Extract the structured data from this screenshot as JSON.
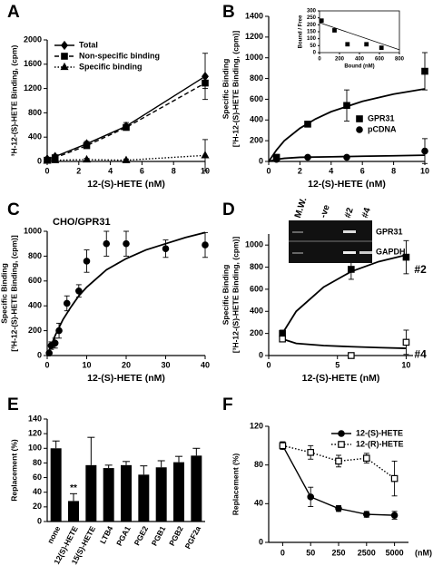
{
  "chart_data": [
    {
      "type": "line",
      "panel": "A",
      "xlabel": "12-(S)-HETE (nM)",
      "ylabel": [
        "³H-12-(S)-HETE Binding, (cpm)"
      ],
      "xlim": [
        0,
        10
      ],
      "xticks": [
        0,
        2,
        4,
        6,
        8,
        10
      ],
      "ylim": [
        0,
        2000
      ],
      "yticks": [
        0,
        400,
        800,
        1200,
        1600,
        2000
      ],
      "legend": "upper left",
      "x": [
        0,
        0.5,
        2.5,
        5,
        10
      ],
      "series": [
        {
          "name": "Total",
          "color": "#000000",
          "marker": "diamond",
          "filled": true,
          "dash": "solid",
          "values": [
            40,
            80,
            290,
            580,
            1400
          ],
          "errors": [
            10,
            20,
            40,
            60,
            380
          ]
        },
        {
          "name": "Non-specific binding",
          "color": "#000000",
          "marker": "square",
          "filled": true,
          "dash": "dashed",
          "values": [
            20,
            60,
            260,
            560,
            1290
          ],
          "errors": [
            5,
            10,
            30,
            40,
            90
          ]
        },
        {
          "name": "Specific binding",
          "color": "#000000",
          "marker": "triangle",
          "filled": true,
          "dash": "dotted",
          "values": [
            10,
            20,
            30,
            20,
            100
          ],
          "errors": [
            5,
            10,
            20,
            20,
            260
          ]
        }
      ]
    },
    {
      "type": "scatter",
      "panel": "B",
      "xlabel": "12-(S)-HETE (nM)",
      "ylabel": [
        "Specific Binding",
        "[³H-12-(S)-HETE Binding, (cpm)]"
      ],
      "xlim": [
        0,
        10
      ],
      "xticks": [
        0,
        2,
        4,
        6,
        8,
        10
      ],
      "ylim": [
        0,
        1400
      ],
      "yticks": [
        0,
        200,
        400,
        600,
        800,
        1000,
        1200,
        1400
      ],
      "legend": "lower right",
      "x": [
        0.5,
        2.5,
        5,
        10
      ],
      "series": [
        {
          "name": "GPR31",
          "color": "#000000",
          "marker": "square",
          "filled": true,
          "values": [
            40,
            360,
            540,
            870
          ],
          "errors": [
            10,
            20,
            150,
            180
          ]
        },
        {
          "name": "pCDNA",
          "color": "#000000",
          "marker": "circle",
          "filled": true,
          "values": [
            20,
            40,
            40,
            100
          ],
          "errors": [
            5,
            10,
            10,
            120
          ]
        }
      ],
      "curves": [
        {
          "x": [
            0,
            0.5,
            1,
            2,
            3,
            4,
            6,
            8,
            10
          ],
          "values": [
            0,
            110,
            200,
            320,
            410,
            480,
            580,
            650,
            700
          ]
        },
        {
          "x": [
            0,
            0.5,
            1,
            2,
            4,
            6,
            8,
            10
          ],
          "values": [
            0,
            20,
            30,
            40,
            45,
            50,
            55,
            60
          ]
        }
      ],
      "inset": {
        "type": "scatter",
        "xlabel": "Bound (nM)",
        "ylabel": [
          "Bound / Free"
        ],
        "xlim": [
          0,
          800
        ],
        "xticks": [
          0,
          200,
          400,
          600,
          800
        ],
        "ylim": [
          0,
          300
        ],
        "yticks": [
          0,
          50,
          100,
          150,
          200,
          250,
          300
        ],
        "x": [
          20,
          150,
          280,
          470,
          620
        ],
        "series": [
          {
            "color": "#000000",
            "marker": "square",
            "filled": true,
            "values": [
              230,
              160,
              60,
              60,
              35
            ]
          }
        ],
        "curves": [
          {
            "x": [
              0,
              800
            ],
            "values": [
              215,
              20
            ]
          }
        ]
      }
    },
    {
      "type": "scatter",
      "panel": "C",
      "title": "CHO/GPR31",
      "xlabel": "12-(S)-HETE (nM)",
      "ylabel": [
        "Specific Binding",
        "[³H-12-(S)-HETE Binding, (cpm)]"
      ],
      "xlim": [
        0,
        40
      ],
      "xticks": [
        0,
        10,
        20,
        30,
        40
      ],
      "ylim": [
        0,
        1000
      ],
      "yticks": [
        0,
        200,
        400,
        600,
        800,
        1000
      ],
      "x": [
        0.5,
        1,
        2,
        3,
        5,
        8,
        10,
        15,
        20,
        30,
        40
      ],
      "series": [
        {
          "color": "#000000",
          "marker": "circle",
          "filled": true,
          "values": [
            20,
            80,
            100,
            200,
            420,
            520,
            760,
            900,
            900,
            860,
            890
          ],
          "errors": [
            10,
            30,
            40,
            60,
            60,
            50,
            90,
            100,
            100,
            70,
            100
          ]
        }
      ],
      "curves": [
        {
          "x": [
            0,
            2,
            4,
            6,
            8,
            10,
            15,
            20,
            25,
            30,
            35,
            40
          ],
          "values": [
            0,
            160,
            290,
            390,
            480,
            550,
            690,
            780,
            850,
            900,
            950,
            990
          ]
        }
      ]
    },
    {
      "type": "scatter",
      "panel": "D",
      "xlabel": "12-(S)-HETE (nM)",
      "ylabel": [
        "Specific Binding",
        "[³H-12-(S)-HETE Binding, (cpm)]"
      ],
      "xlim": [
        0,
        10.5
      ],
      "xticks": [
        0,
        5,
        10
      ],
      "ylim": [
        0,
        1100
      ],
      "yticks": [
        0,
        200,
        400,
        600,
        800,
        1000
      ],
      "legend": "curve-end",
      "x": [
        1,
        6,
        10
      ],
      "series": [
        {
          "name": "#2",
          "color": "#000000",
          "marker": "square",
          "filled": true,
          "values": [
            200,
            780,
            890
          ],
          "errors": [
            30,
            90,
            150
          ]
        },
        {
          "name": "#4",
          "color": "#000000",
          "marker": "square",
          "filled": false,
          "values": [
            150,
            0,
            120
          ],
          "errors": [
            20,
            20,
            110
          ]
        }
      ],
      "curves": [
        {
          "x": [
            1,
            2,
            4,
            6,
            8,
            10
          ],
          "values": [
            200,
            400,
            620,
            760,
            850,
            910
          ]
        },
        {
          "x": [
            1,
            2,
            4,
            6,
            8,
            10
          ],
          "values": [
            150,
            110,
            90,
            80,
            72,
            65
          ]
        }
      ],
      "gel": {
        "lanes": [
          "M.W.",
          "-ve",
          "#2",
          "#4"
        ],
        "bands": [
          "GPR31",
          "GAPDH"
        ]
      }
    },
    {
      "type": "bar",
      "panel": "E",
      "ylabel": [
        "Replacement (%)"
      ],
      "ylim": [
        0,
        140
      ],
      "yticks": [
        0,
        20,
        40,
        60,
        80,
        100,
        120,
        140
      ],
      "color": "#000000",
      "categories": [
        "none",
        "12(S)-HETE",
        "15(S)-HETE",
        "LTB4",
        "PGA1",
        "PGE2",
        "PGB1",
        "PGB2",
        "PGF2a"
      ],
      "values": [
        100,
        28,
        77,
        73,
        77,
        64,
        74,
        81,
        90
      ],
      "errors": [
        10,
        10,
        38,
        4,
        5,
        12,
        9,
        8,
        10
      ],
      "annotations": [
        {
          "text": "**",
          "category": "12(S)-HETE"
        }
      ]
    },
    {
      "type": "line",
      "panel": "F",
      "xlabel": "(nM)",
      "ylabel": [
        "Replacement (%)"
      ],
      "ylim": [
        0,
        120
      ],
      "yticks": [
        0,
        40,
        80,
        120
      ],
      "legend": "upper right",
      "categories": [
        "0",
        "50",
        "250",
        "2500",
        "5000"
      ],
      "series": [
        {
          "name": "12-(S)-HETE",
          "color": "#000000",
          "marker": "circle",
          "filled": true,
          "dash": "solid",
          "values": [
            100,
            47,
            35,
            29,
            28
          ],
          "errors": [
            3,
            10,
            3,
            3,
            4
          ]
        },
        {
          "name": "12-(R)-HETE",
          "color": "#000000",
          "marker": "square",
          "filled": false,
          "dash": "dotted",
          "values": [
            100,
            93,
            84,
            87,
            66
          ],
          "errors": [
            4,
            7,
            6,
            5,
            18
          ]
        }
      ]
    }
  ]
}
